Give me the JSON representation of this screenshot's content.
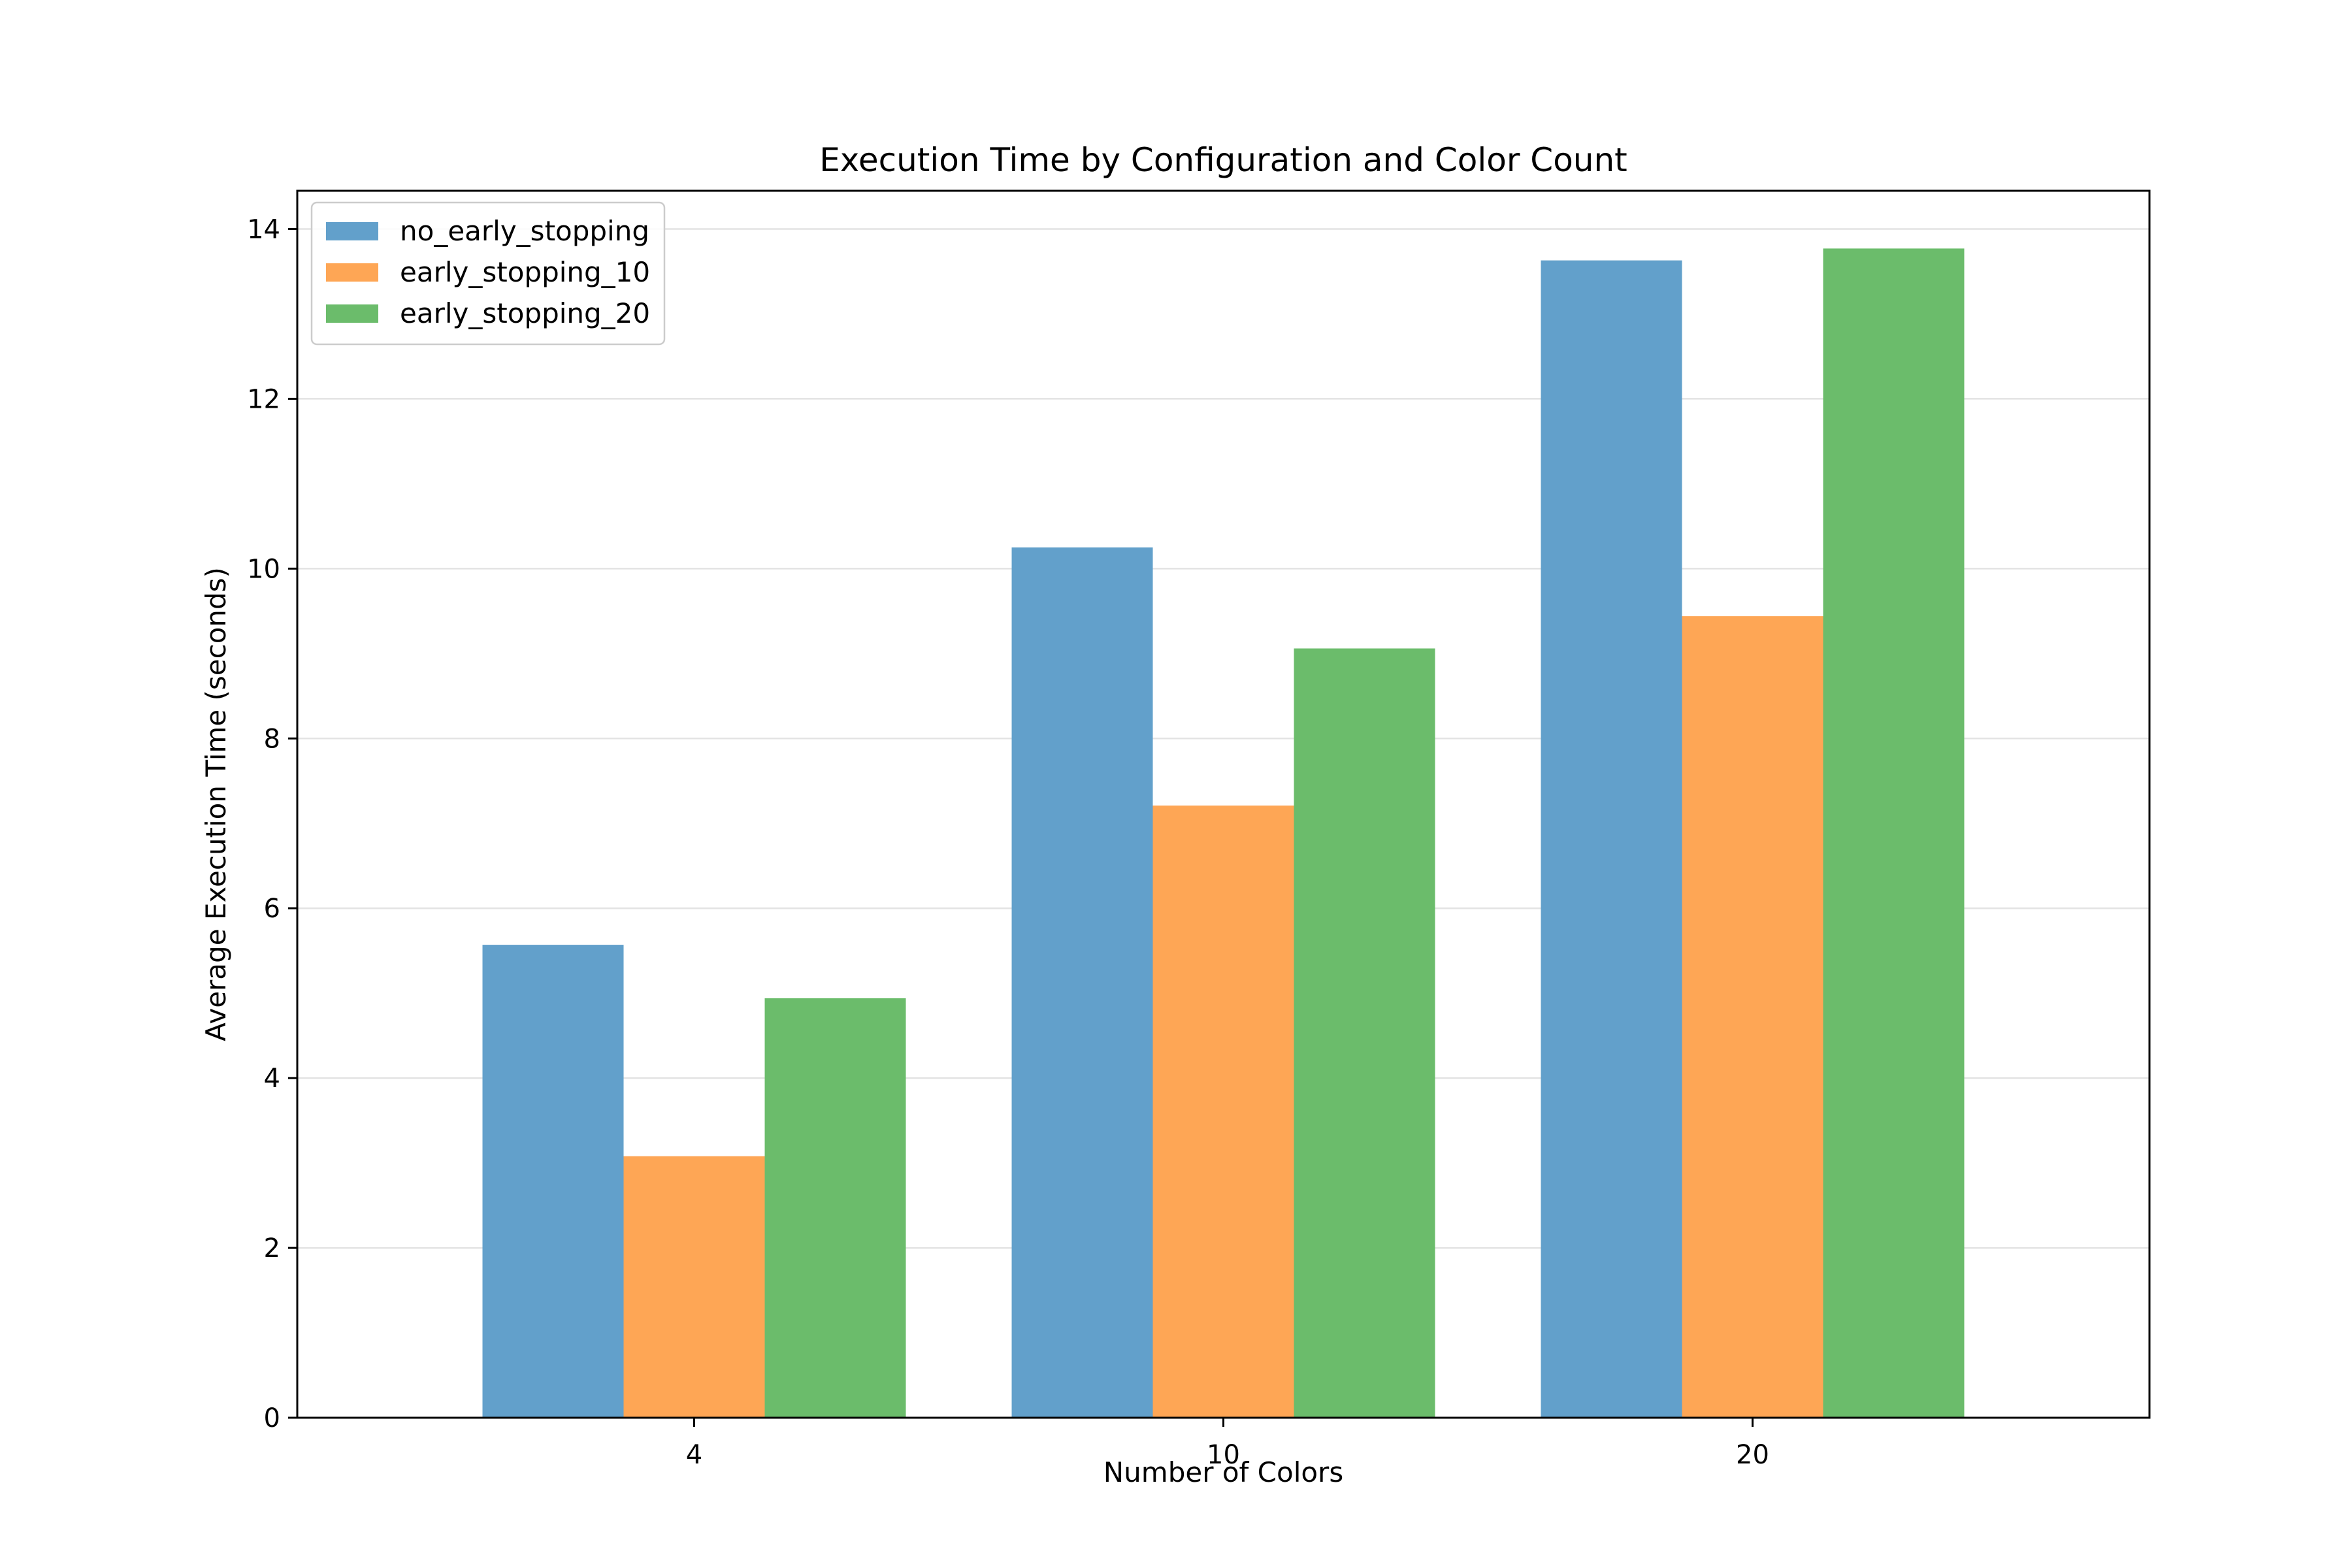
{
  "chart_data": {
    "type": "bar",
    "title": "Execution Time by Configuration and Color Count",
    "xlabel": "Number of Colors",
    "ylabel": "Average Execution Time (seconds)",
    "categories": [
      "4",
      "10",
      "20"
    ],
    "series": [
      {
        "name": "no_early_stopping",
        "color": "#62a0cb",
        "values": [
          5.57,
          10.25,
          13.63
        ]
      },
      {
        "name": "early_stopping_10",
        "color": "#fea655",
        "values": [
          3.08,
          7.21,
          9.44
        ]
      },
      {
        "name": "early_stopping_20",
        "color": "#6bbc6b",
        "values": [
          4.94,
          9.06,
          13.77
        ]
      }
    ],
    "ylim": [
      0,
      14.45
    ],
    "yticks": [
      0,
      2,
      4,
      6,
      8,
      10,
      12,
      14
    ],
    "grid": "horizontal",
    "legend_position": "upper-left"
  }
}
